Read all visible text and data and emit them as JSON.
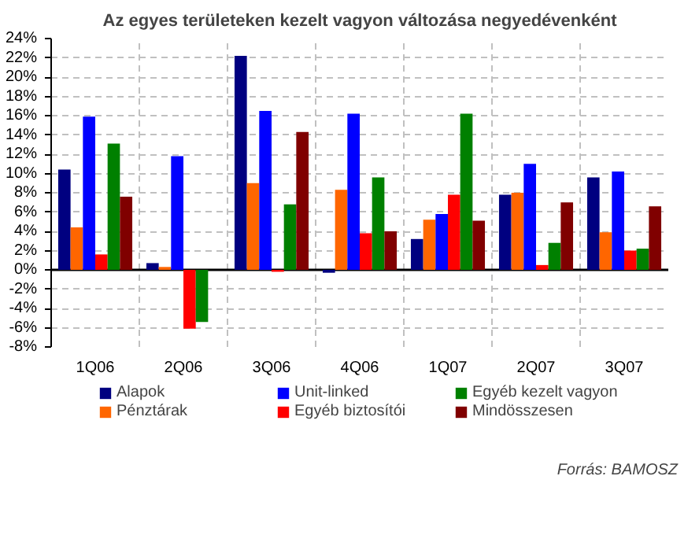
{
  "chart_data": {
    "type": "bar",
    "title": "Az egyes területeken kezelt vagyon változása negyedévenként",
    "categories": [
      "1Q06",
      "2Q06",
      "3Q06",
      "4Q06",
      "1Q07",
      "2Q07",
      "3Q07"
    ],
    "series": [
      {
        "name": "Alapok",
        "color": "#000080",
        "values": [
          10.4,
          0.7,
          22.2,
          -0.3,
          3.2,
          7.8,
          9.6
        ]
      },
      {
        "name": "Pénztárak",
        "color": "#ff6600",
        "values": [
          4.4,
          0.3,
          9.0,
          8.3,
          5.2,
          8.0,
          3.9
        ]
      },
      {
        "name": "Unit-linked",
        "color": "#0000ff",
        "values": [
          15.9,
          11.8,
          16.5,
          16.2,
          5.8,
          11.0,
          10.2
        ]
      },
      {
        "name": "Egyéb biztosítói",
        "color": "#ff0000",
        "values": [
          1.6,
          -6.1,
          -0.2,
          3.8,
          7.8,
          0.5,
          2.0
        ]
      },
      {
        "name": "Egyéb kezelt vagyon",
        "color": "#008000",
        "values": [
          13.1,
          -5.4,
          6.8,
          9.6,
          16.2,
          2.8,
          2.2
        ]
      },
      {
        "name": "Mindösszesen",
        "color": "#800000",
        "values": [
          7.6,
          null,
          14.3,
          4.0,
          5.1,
          7.0,
          6.6
        ]
      }
    ],
    "ylim": [
      -8,
      24
    ],
    "yticks": [
      {
        "value": -8,
        "label": "-8%"
      },
      {
        "value": -6,
        "label": "-6%"
      },
      {
        "value": -4,
        "label": "-4%"
      },
      {
        "value": -2,
        "label": "-2%"
      },
      {
        "value": 0,
        "label": "0%"
      },
      {
        "value": 2,
        "label": "2%"
      },
      {
        "value": 4,
        "label": "4%"
      },
      {
        "value": 6,
        "label": "6%"
      },
      {
        "value": 8,
        "label": "8%"
      },
      {
        "value": 10,
        "label": "10%"
      },
      {
        "value": 12,
        "label": "12%"
      },
      {
        "value": 14,
        "label": "14%"
      },
      {
        "value": 16,
        "label": "16%"
      },
      {
        "value": 18,
        "label": "18%"
      },
      {
        "value": 20,
        "label": "20%"
      },
      {
        "value": 22,
        "label": "22%"
      },
      {
        "value": 24,
        "label": "24%"
      }
    ],
    "grid": true,
    "legend": "bottom",
    "annotations": [
      "Forrás: BAMOSZ"
    ]
  }
}
